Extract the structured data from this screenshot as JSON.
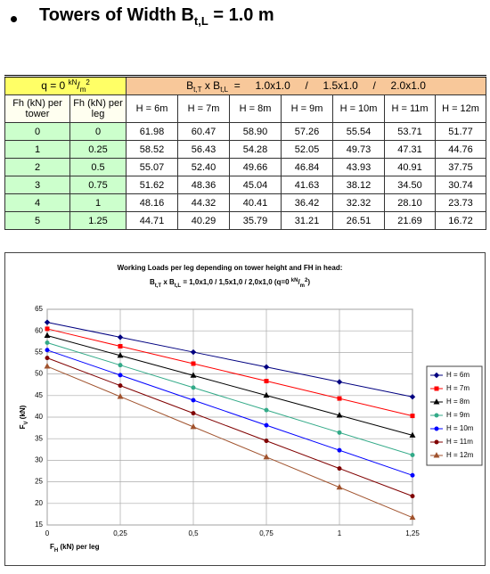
{
  "heading": {
    "main": "Towers of Width B",
    "sub": "t,L",
    "rest": " = 1.0 m"
  },
  "table": {
    "q_label": [
      "q = 0 ",
      "kN",
      "/",
      "m",
      "2"
    ],
    "size_label": [
      "B",
      "t,T",
      " x B",
      "t,L",
      "  =     1.0x1.0     /     1.5x1.0     /     2.0x1.0"
    ],
    "columns": [
      "Fh (kN) per tower",
      "Fh (kN) per leg",
      "H = 6m",
      "H = 7m",
      "H = 8m",
      "H = 9m",
      "H = 10m",
      "H = 11m",
      "H = 12m"
    ],
    "rows": [
      [
        "0",
        "0",
        "61.98",
        "60.47",
        "58.90",
        "57.26",
        "55.54",
        "53.71",
        "51.77"
      ],
      [
        "1",
        "0.25",
        "58.52",
        "56.43",
        "54.28",
        "52.05",
        "49.73",
        "47.31",
        "44.76"
      ],
      [
        "2",
        "0.5",
        "55.07",
        "52.40",
        "49.66",
        "46.84",
        "43.93",
        "40.91",
        "37.75"
      ],
      [
        "3",
        "0.75",
        "51.62",
        "48.36",
        "45.04",
        "41.63",
        "38.12",
        "34.50",
        "30.74"
      ],
      [
        "4",
        "1",
        "48.16",
        "44.32",
        "40.41",
        "36.42",
        "32.32",
        "28.10",
        "23.73"
      ],
      [
        "5",
        "1.25",
        "44.71",
        "40.29",
        "35.79",
        "31.21",
        "26.51",
        "21.69",
        "16.72"
      ]
    ]
  },
  "chart_data": {
    "type": "line",
    "title": "Working Loads per leg depending on tower height and FH in head:",
    "subtitle": [
      "B",
      "t,T",
      " x B",
      "t,L",
      " = 1,0x1,0  /  1,5x1,0  /  2,0x1,0     (q=0 ",
      "kN",
      "/",
      "m",
      "2",
      ")"
    ],
    "x_label": [
      "F",
      "H",
      " (kN) per leg"
    ],
    "y_label": [
      "F",
      "V",
      " (kN)"
    ],
    "x": [
      0,
      0.25,
      0.5,
      0.75,
      1,
      1.25
    ],
    "xlim": [
      0,
      1.25
    ],
    "xticks": [
      0,
      {
        "value": 0.25,
        "label": "0,25"
      },
      {
        "value": 0.5,
        "label": "0,5"
      },
      {
        "value": 0.75,
        "label": "0,75"
      },
      1,
      {
        "value": 1.25,
        "label": "1,25"
      }
    ],
    "ylim": [
      15,
      65
    ],
    "yticks": [
      15,
      20,
      25,
      30,
      35,
      40,
      45,
      50,
      55,
      60,
      65
    ],
    "grid": true,
    "legend": "right",
    "series": [
      {
        "name": "H = 6m",
        "color": "#000080",
        "marker": "diamond",
        "values": [
          61.98,
          58.52,
          55.07,
          51.62,
          48.16,
          44.71
        ]
      },
      {
        "name": "H = 7m",
        "color": "#ff0000",
        "marker": "square",
        "values": [
          60.47,
          56.43,
          52.4,
          48.36,
          44.32,
          40.29
        ]
      },
      {
        "name": "H = 8m",
        "color": "#000000",
        "marker": "triangle",
        "values": [
          58.9,
          54.28,
          49.66,
          45.04,
          40.41,
          35.79
        ]
      },
      {
        "name": "H = 9m",
        "color": "#33aa88",
        "marker": "circle",
        "values": [
          57.26,
          52.05,
          46.84,
          41.63,
          36.42,
          31.21
        ]
      },
      {
        "name": "H = 10m",
        "color": "#0000ff",
        "marker": "circle",
        "values": [
          55.54,
          49.73,
          43.93,
          38.12,
          32.32,
          26.51
        ]
      },
      {
        "name": "H = 11m",
        "color": "#800000",
        "marker": "circle",
        "values": [
          53.71,
          47.31,
          40.91,
          34.5,
          28.1,
          21.69
        ]
      },
      {
        "name": "H = 12m",
        "color": "#a0522d",
        "marker": "triangle",
        "values": [
          51.77,
          44.76,
          37.75,
          30.74,
          23.73,
          16.72
        ]
      }
    ]
  }
}
